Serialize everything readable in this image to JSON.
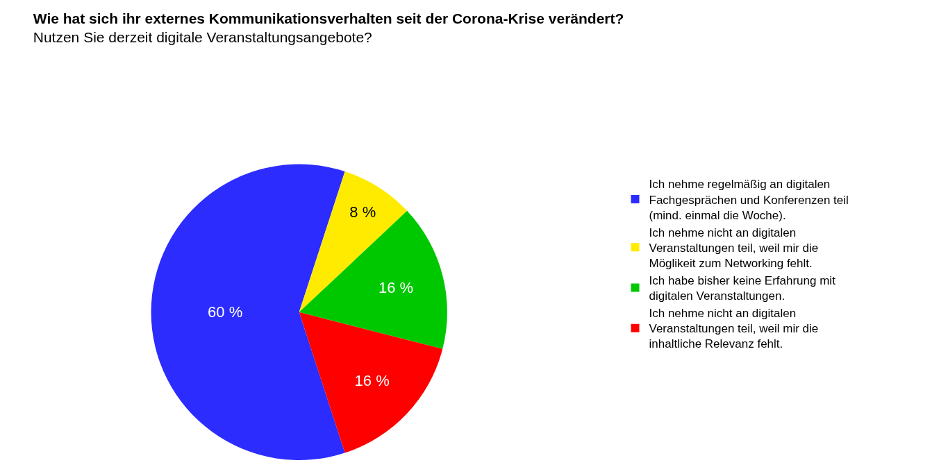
{
  "chart_data": {
    "type": "pie",
    "title": "Wie hat sich ihr externes Kommunikationsverhalten seit der Corona-Krise verändert?",
    "subtitle": "Nutzen Sie derzeit digitale Veranstaltungsangebote?",
    "categories": [
      "Ich nehme regelmäßig an digitalen Fachgesprächen und Konferenzen teil (mind. einmal die Woche).",
      "Ich nehme nicht an digitalen Veranstaltungen teil, weil mir die Möglikeit zum Networking fehlt.",
      "Ich habe bisher keine Erfahrung mit digitalen Veranstaltungen.",
      "Ich nehme nicht an digitalen Veranstaltungen teil, weil mir die inhaltliche Relevanz fehlt."
    ],
    "values": [
      60,
      8,
      16,
      16
    ],
    "value_labels": [
      "60 %",
      "8 %",
      "16 %",
      "16 %"
    ],
    "colors": [
      "#2c2cff",
      "#ffeb00",
      "#00c800",
      "#ff0000"
    ],
    "legend": "right"
  }
}
